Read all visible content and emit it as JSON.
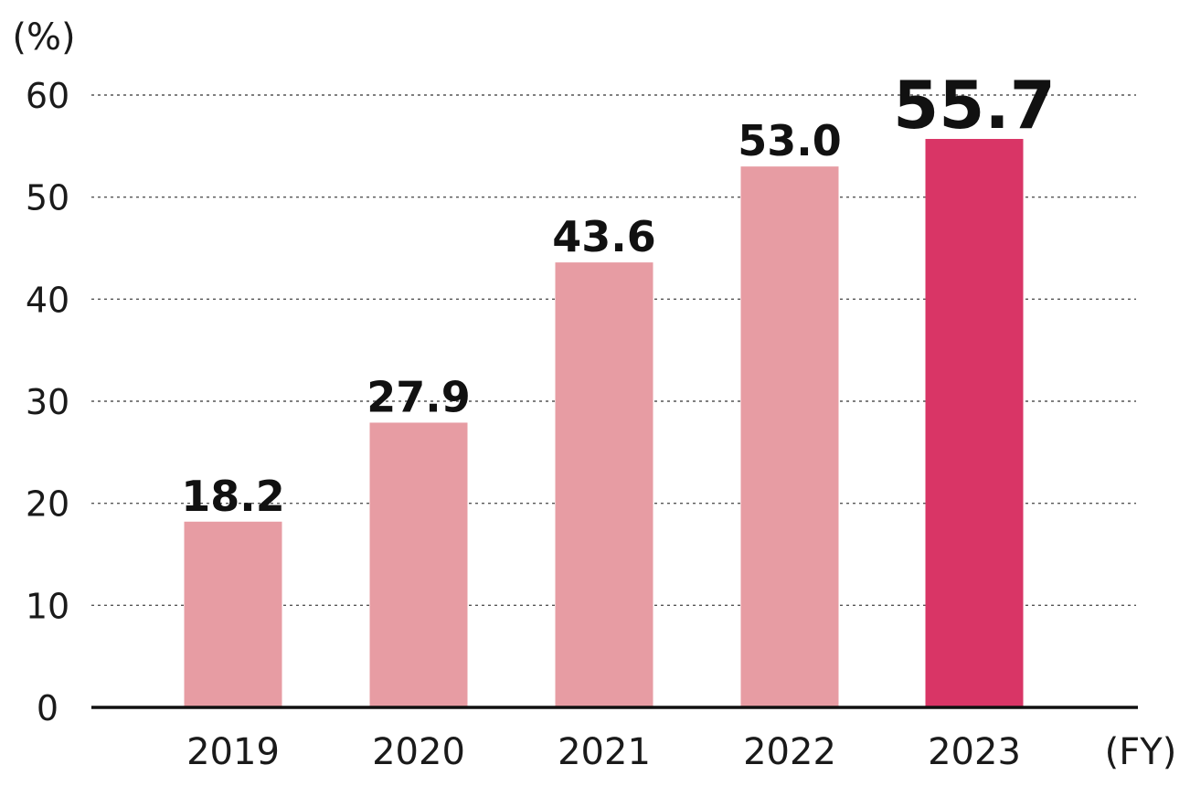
{
  "chart_data": {
    "type": "bar",
    "y_unit_label": "(%)",
    "x_unit_label": "(FY)",
    "categories": [
      "2019",
      "2020",
      "2021",
      "2022",
      "2023"
    ],
    "values": [
      18.2,
      27.9,
      43.6,
      53.0,
      55.7
    ],
    "value_labels": [
      "18.2",
      "27.9",
      "43.6",
      "53.0",
      "55.7"
    ],
    "highlight_index": 4,
    "ylim": [
      0,
      60
    ],
    "yticks": [
      "0",
      "10",
      "20",
      "30",
      "40",
      "50",
      "60"
    ],
    "ytick_values": [
      0,
      10,
      20,
      30,
      40,
      50,
      60
    ],
    "grid": "dotted horizontal",
    "colors": {
      "bar": "#E79CA3",
      "bar_highlight": "#D93566",
      "axis": "#111111",
      "grid": "#555555",
      "text": "#1a1a1a"
    }
  }
}
